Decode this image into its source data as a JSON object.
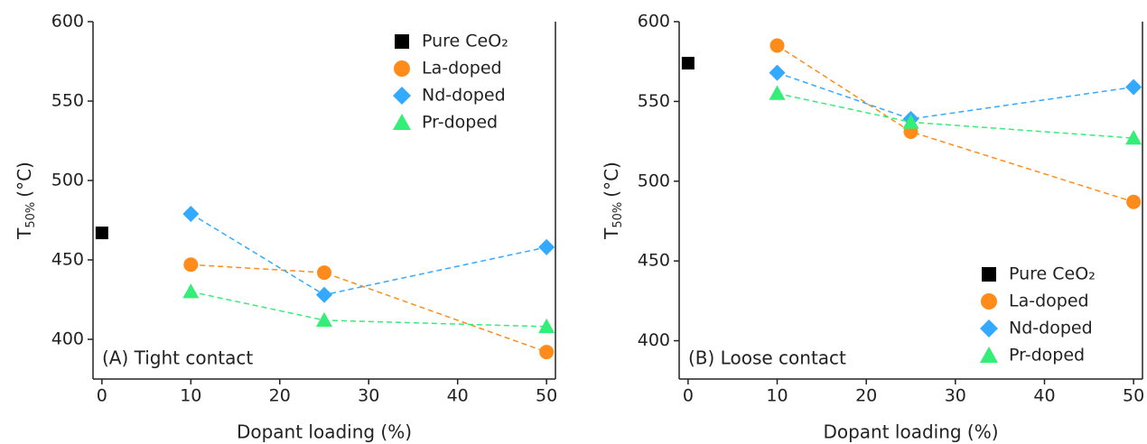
{
  "chart_data": [
    {
      "type": "scatter",
      "annotation": "(A) Tight contact",
      "xlabel": "Dopant loading (%)",
      "ylabel": [
        "T",
        "50%",
        "(°C)"
      ],
      "xlim": [
        -1,
        51
      ],
      "xticks": [
        0,
        10,
        20,
        30,
        40,
        50
      ],
      "ylim": [
        375,
        600
      ],
      "yticks": [
        400,
        450,
        500,
        550,
        600
      ],
      "legend": "upper right",
      "series": [
        {
          "name": "Pure CeO₂",
          "color": "#000000",
          "marker": "square",
          "linestyle": "none",
          "x": [
            0
          ],
          "values": [
            467
          ]
        },
        {
          "name": "La-doped",
          "color": "#ff8c1a",
          "marker": "circle",
          "linestyle": "dashed",
          "x": [
            10,
            25,
            50
          ],
          "values": [
            447,
            442,
            392
          ]
        },
        {
          "name": "Nd-doped",
          "color": "#33aaff",
          "marker": "diamond",
          "linestyle": "dashed",
          "x": [
            10,
            25,
            50
          ],
          "values": [
            479,
            428,
            458
          ]
        },
        {
          "name": "Pr-doped",
          "color": "#33ee77",
          "marker": "triangle",
          "linestyle": "dashed",
          "x": [
            10,
            25,
            50
          ],
          "values": [
            430,
            412,
            408
          ]
        }
      ]
    },
    {
      "type": "scatter",
      "annotation": "(B) Loose contact",
      "xlabel": "Dopant loading (%)",
      "ylabel": [
        "T",
        "50%",
        "(°C)"
      ],
      "xlim": [
        -1,
        51
      ],
      "xticks": [
        0,
        10,
        20,
        30,
        40,
        50
      ],
      "ylim": [
        376,
        600
      ],
      "yticks": [
        400,
        450,
        500,
        550,
        600
      ],
      "legend": "lower right",
      "series": [
        {
          "name": "Pure CeO₂",
          "color": "#000000",
          "marker": "square",
          "linestyle": "none",
          "x": [
            0
          ],
          "values": [
            574
          ]
        },
        {
          "name": "La-doped",
          "color": "#ff8c1a",
          "marker": "circle",
          "linestyle": "dashed",
          "x": [
            10,
            25,
            50
          ],
          "values": [
            585,
            531,
            487
          ]
        },
        {
          "name": "Nd-doped",
          "color": "#33aaff",
          "marker": "diamond",
          "linestyle": "dashed",
          "x": [
            10,
            25,
            50
          ],
          "values": [
            568,
            539,
            559
          ]
        },
        {
          "name": "Pr-doped",
          "color": "#33ee77",
          "marker": "triangle",
          "linestyle": "dashed",
          "x": [
            10,
            25,
            50
          ],
          "values": [
            555,
            537,
            527
          ]
        }
      ]
    }
  ]
}
